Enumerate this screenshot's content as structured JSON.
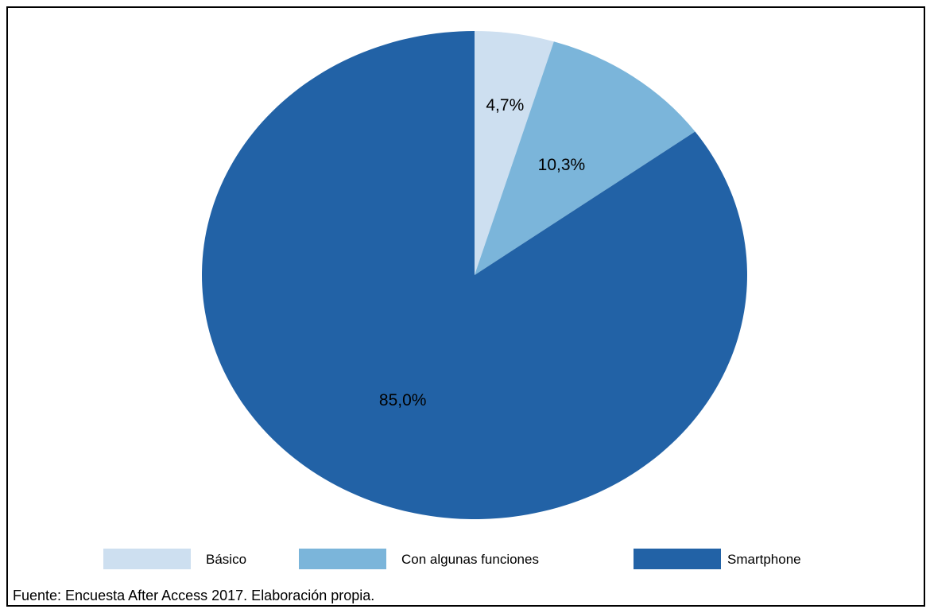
{
  "chart_data": {
    "type": "pie",
    "categories": [
      "Básico",
      "Con algunas funciones",
      "Smartphone"
    ],
    "values": [
      4.7,
      10.3,
      85.0
    ],
    "data_labels": [
      "4,7%",
      "10,3%",
      "85,0%"
    ],
    "colors": [
      "#cddff0",
      "#7bb5da",
      "#2262a6"
    ],
    "start_angle": "12 o'clock",
    "direction": "clockwise",
    "legend_position": "bottom"
  },
  "legend": {
    "items": [
      {
        "label": "Básico",
        "color": "#cddff0"
      },
      {
        "label": "Con algunas funciones",
        "color": "#7bb5da"
      },
      {
        "label": "Smartphone",
        "color": "#2262a6"
      }
    ]
  },
  "source_note": "Fuente: Encuesta After Access 2017. Elaboración propia."
}
